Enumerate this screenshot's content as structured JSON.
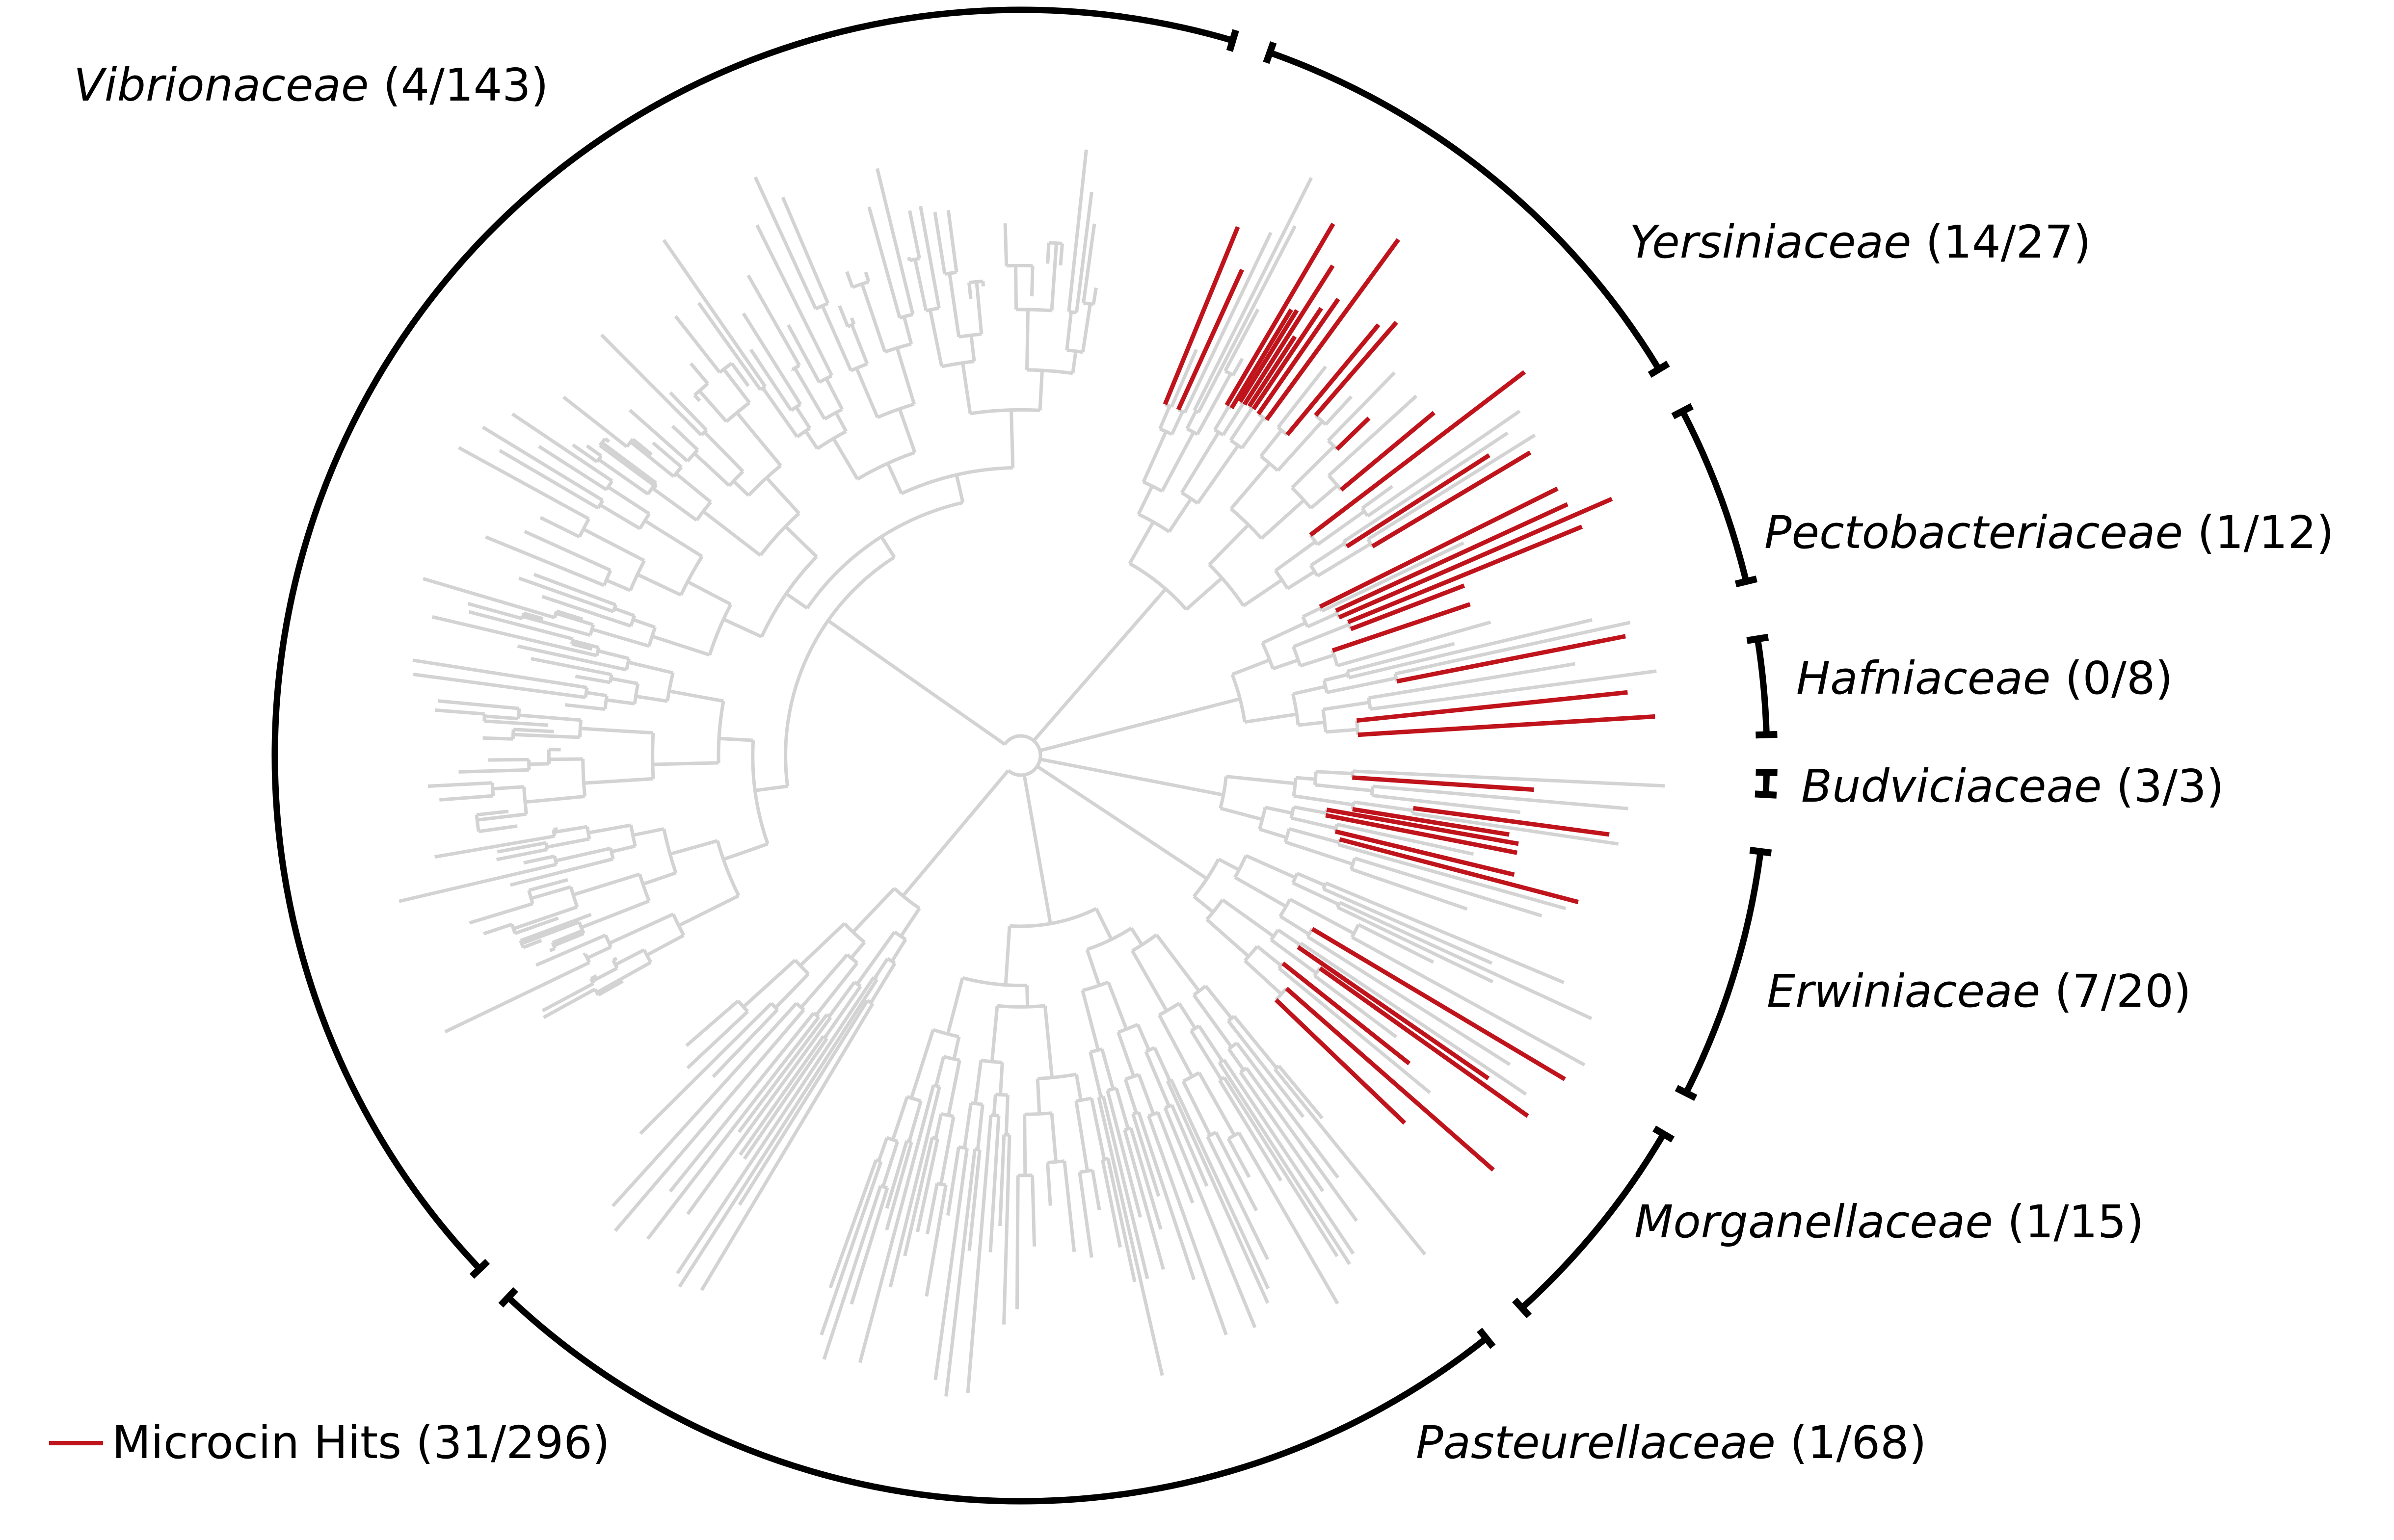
{
  "figure": {
    "description_free": true,
    "colors": {
      "background": "#ffffff",
      "tree_branch": "#d3d3d3",
      "hit_branch": "#c0141c",
      "clade_arc": "#000000",
      "text": "#000000"
    }
  },
  "clades": [
    {
      "id": "vibrionaceae",
      "family": "Vibrionaceae",
      "count": "(4/143)"
    },
    {
      "id": "yersiniaceae",
      "family": "Yersiniaceae",
      "count": "(14/27)"
    },
    {
      "id": "pectobacteriaceae",
      "family": "Pectobacteriaceae",
      "count": "(1/12)"
    },
    {
      "id": "hafniaceae",
      "family": "Hafniaceae",
      "count": "(0/8)"
    },
    {
      "id": "budviciaceae",
      "family": "Budviciaceae",
      "count": "(3/3)"
    },
    {
      "id": "erwiniaceae",
      "family": "Erwiniaceae",
      "count": "(7/20)"
    },
    {
      "id": "morganellaceae",
      "family": "Morganellaceae",
      "count": "(1/15)"
    },
    {
      "id": "pasteurellaceae",
      "family": "Pasteurellaceae",
      "count": "(1/68)"
    }
  ],
  "legend": {
    "label": "Microcin Hits (31/296)",
    "color": "#c0141c"
  }
}
